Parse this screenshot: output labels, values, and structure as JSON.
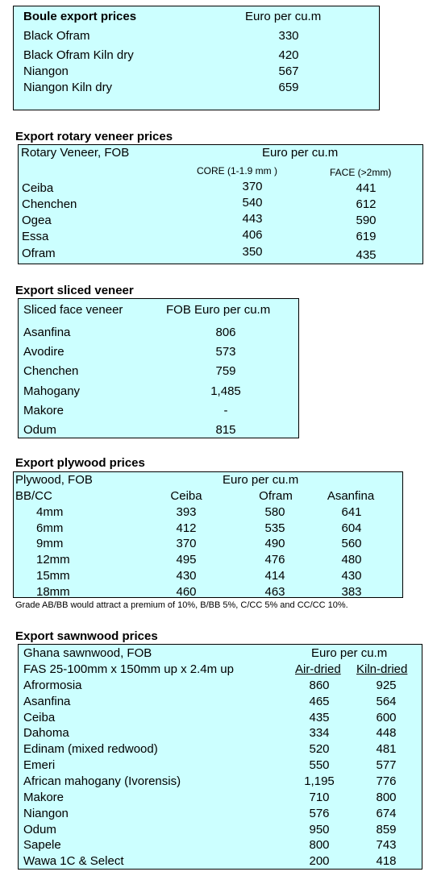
{
  "boule": {
    "title": "Boule export prices",
    "unit": "Euro per cu.m",
    "rows": [
      {
        "name": "Black Ofram",
        "price": "330"
      },
      {
        "name": "Black Ofram  Kiln dry",
        "price": "420"
      },
      {
        "name": "Niangon",
        "price": "567"
      },
      {
        "name": "Niangon Kiln dry",
        "price": "659"
      }
    ]
  },
  "rotary": {
    "title": "Export rotary veneer prices",
    "head_label": "Rotary Veneer,  FOB",
    "unit": "Euro  per cu.m",
    "col_core": "CORE (1-1.9 mm )",
    "col_face": "FACE (>2mm)",
    "rows": [
      {
        "name": "Ceiba",
        "core": "370",
        "face": "441"
      },
      {
        "name": "Chenchen",
        "core": "540",
        "face": "612"
      },
      {
        "name": "Ogea",
        "core": "443",
        "face": "590"
      },
      {
        "name": "Essa",
        "core": "406",
        "face": "619"
      },
      {
        "name": "Ofram",
        "core": "350",
        "face": "435"
      }
    ]
  },
  "sliced": {
    "title": "Export sliced veneer",
    "head_label": "Sliced face veneer",
    "unit": "FOB Euro per cu.m",
    "rows": [
      {
        "name": "Asanfina",
        "price": "806"
      },
      {
        "name": "Avodire",
        "price": "573"
      },
      {
        "name": "Chenchen",
        "price": "759"
      },
      {
        "name": "Mahogany",
        "price": "1,485"
      },
      {
        "name": "Makore",
        "price": "-"
      },
      {
        "name": "Odum",
        "price": "815"
      }
    ]
  },
  "plywood": {
    "title": "Export plywood prices",
    "head_label": "Plywood, FOB",
    "unit": "Euro per cu.m",
    "grade": "BB/CC",
    "cols": [
      "Ceiba",
      "Ofram",
      "Asanfina"
    ],
    "rows": [
      {
        "size": "4mm",
        "v": [
          "393",
          "580",
          "641"
        ]
      },
      {
        "size": "6mm",
        "v": [
          "412",
          "535",
          "604"
        ]
      },
      {
        "size": "9mm",
        "v": [
          "370",
          "490",
          "560"
        ]
      },
      {
        "size": "12mm",
        "v": [
          "495",
          "476",
          "480"
        ]
      },
      {
        "size": "15mm",
        "v": [
          "430",
          "414",
          "430"
        ]
      },
      {
        "size": "18mm",
        "v": [
          "460",
          "463",
          "383"
        ]
      }
    ],
    "note": "Grade AB/BB would attract a premium of 10%, B/BB 5%, C/CC 5% and CC/CC 10%."
  },
  "sawn": {
    "title": "Export sawnwood prices",
    "head_label": "Ghana sawnwood, FOB",
    "spec": "FAS 25-100mm x 150mm up x 2.4m up",
    "unit": "Euro per cu.m",
    "col_air": "Air-dried",
    "col_kiln": "Kiln-dried",
    "rows": [
      {
        "name": "Afrormosia",
        "air": "860",
        "kiln": "925"
      },
      {
        "name": "Asanfina",
        "air": "465",
        "kiln": "564"
      },
      {
        "name": "Ceiba",
        "air": "435",
        "kiln": "600"
      },
      {
        "name": "Dahoma",
        "air": "334",
        "kiln": "448"
      },
      {
        "name": "Edinam (mixed redwood)",
        "air": "520",
        "kiln": "481"
      },
      {
        "name": "Emeri",
        "air": "550",
        "kiln": "577"
      },
      {
        "name": "African mahogany (Ivorensis)",
        "air": "1,195",
        "kiln": "776"
      },
      {
        "name": "Makore",
        "air": "710",
        "kiln": "800"
      },
      {
        "name": "Niangon",
        "air": "576",
        "kiln": "674"
      },
      {
        "name": "Odum",
        "air": "950",
        "kiln": "859"
      },
      {
        "name": "Sapele",
        "air": "800",
        "kiln": "743"
      },
      {
        "name": "Wawa 1C & Select",
        "air": "200",
        "kiln": "418"
      }
    ]
  }
}
